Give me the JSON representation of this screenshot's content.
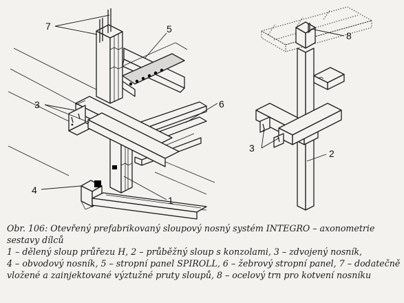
{
  "labels": {
    "n1": "1",
    "n2": "2",
    "n3a": "3",
    "n3b": "3",
    "n4": "4",
    "n5": "5",
    "n6": "6",
    "n7": "7",
    "n8": "8"
  },
  "caption": {
    "line1": "Obr. 106: Otevřený prefabrikovaný sloupový nosný systém INTEGRO – axonometrie",
    "line2": "sestavy dílců",
    "line3": "1 – dělený sloup průřezu H, 2 – průběžný sloup s konzolami, 3 – zdvojený nosník,",
    "line4": "4 – obvodový nosník, 5 – stropní panel SPIROLL, 6 – žebrový stropní panel, 7 – dodatečně",
    "line5": "vložené a zainjektované výztužné pruty sloupů, 8 – ocelový trn pro kotvení nosníku"
  }
}
